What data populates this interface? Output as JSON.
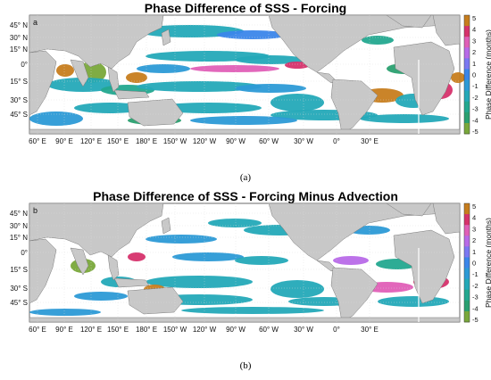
{
  "colors": {
    "land": "#c8c8c8",
    "grid": "#dcdcdc",
    "scale": [
      "#c77d1d",
      "#d6326b",
      "#e05fb7",
      "#b86ae8",
      "#7b78f2",
      "#3b86ea",
      "#2c9ad6",
      "#24a9b8",
      "#23a88f",
      "#2aa070",
      "#79a83a"
    ]
  },
  "colorbar": {
    "label": "Phase Difference (months)",
    "ticks": [
      "5",
      "4",
      "3",
      "2",
      "1",
      "0",
      "-1",
      "-2",
      "-3",
      "-4",
      "-5"
    ]
  },
  "axes": {
    "lat_labels": [
      "45° N",
      "30° N",
      "15° N",
      "0°",
      "15° S",
      "30° S",
      "45° S"
    ],
    "lon_labels": [
      "60° E",
      "90° E",
      "120° E",
      "150° E",
      "180° E",
      "150° W",
      "120° W",
      "90° W",
      "60° W",
      "30° W",
      "0°",
      "30° E"
    ]
  },
  "panels": [
    {
      "letter": "a",
      "title": "Phase Difference of SSS - Forcing",
      "caption": "(a)"
    },
    {
      "letter": "b",
      "title": "Phase Difference of SSS - Forcing Minus Advection",
      "caption": "(b)"
    }
  ]
}
